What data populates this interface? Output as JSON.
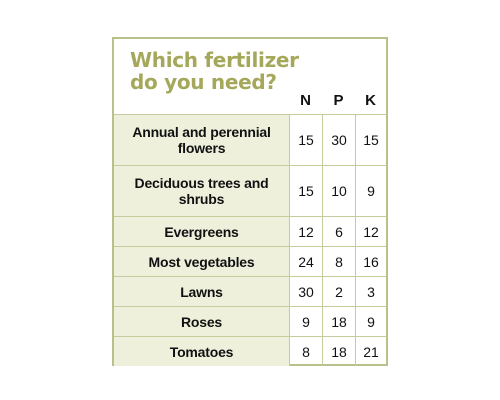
{
  "title": "Which fertilizer do you need?",
  "columns": [
    "N",
    "P",
    "K"
  ],
  "colors": {
    "border": "#b9c08a",
    "title": "#a5a85a",
    "label_background": "#eef0dc"
  },
  "rows": [
    {
      "label": "Annual and perennial flowers",
      "n": "15",
      "p": "30",
      "k": "15"
    },
    {
      "label": "Deciduous trees and shrubs",
      "n": "15",
      "p": "10",
      "k": "9"
    },
    {
      "label": "Evergreens",
      "n": "12",
      "p": "6",
      "k": "12"
    },
    {
      "label": "Most vegetables",
      "n": "24",
      "p": "8",
      "k": "16"
    },
    {
      "label": "Lawns",
      "n": "30",
      "p": "2",
      "k": "3"
    },
    {
      "label": "Roses",
      "n": "9",
      "p": "18",
      "k": "9"
    },
    {
      "label": "Tomatoes",
      "n": "8",
      "p": "18",
      "k": "21"
    }
  ],
  "chart_data": {
    "type": "table",
    "title": "Which fertilizer do you need?",
    "columns": [
      "N",
      "P",
      "K"
    ],
    "categories": [
      "Annual and perennial flowers",
      "Deciduous trees and shrubs",
      "Evergreens",
      "Most vegetables",
      "Lawns",
      "Roses",
      "Tomatoes"
    ],
    "series": [
      {
        "name": "N",
        "values": [
          15,
          15,
          12,
          24,
          30,
          9,
          8
        ]
      },
      {
        "name": "P",
        "values": [
          30,
          10,
          6,
          8,
          2,
          18,
          18
        ]
      },
      {
        "name": "K",
        "values": [
          15,
          9,
          12,
          16,
          3,
          9,
          21
        ]
      }
    ]
  }
}
